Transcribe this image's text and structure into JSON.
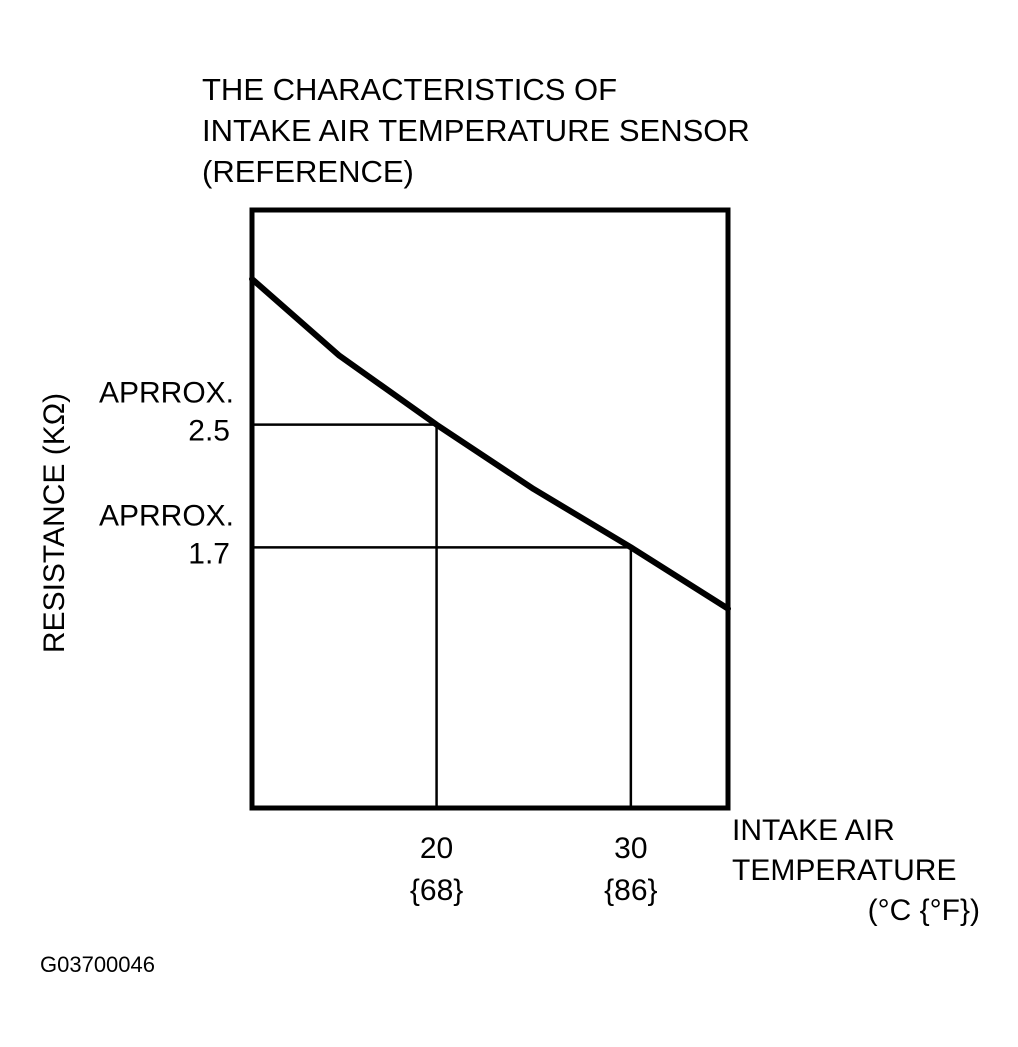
{
  "chart_data": {
    "type": "line",
    "title": [
      "THE CHARACTERISTICS OF",
      "INTAKE AIR TEMPERATURE SENSOR",
      "(REFERENCE)"
    ],
    "ylabel": "RESISTANCE (KΩ)",
    "xlabel": [
      "INTAKE AIR",
      "TEMPERATURE",
      "(°C {°F})"
    ],
    "x_ticks": [
      {
        "value": 20,
        "label": "20",
        "sublabel": "{68}"
      },
      {
        "value": 30,
        "label": "30",
        "sublabel": "{86}"
      }
    ],
    "y_ticks": [
      {
        "value": 2.5,
        "prefix": "APRROX.",
        "label": "2.5"
      },
      {
        "value": 1.7,
        "prefix": "APRROX.",
        "label": "1.7"
      }
    ],
    "xlim": [
      10.5,
      35
    ],
    "ylim": [
      0,
      3.9
    ],
    "series": [
      {
        "x": [
          10.5,
          15,
          20,
          25,
          30,
          35
        ],
        "y": [
          3.45,
          2.95,
          2.5,
          2.08,
          1.7,
          1.3
        ]
      }
    ],
    "reference_points": [
      {
        "x": 20,
        "y": 2.5
      },
      {
        "x": 30,
        "y": 1.7
      }
    ],
    "grid": false,
    "figure_id": "G03700046"
  }
}
